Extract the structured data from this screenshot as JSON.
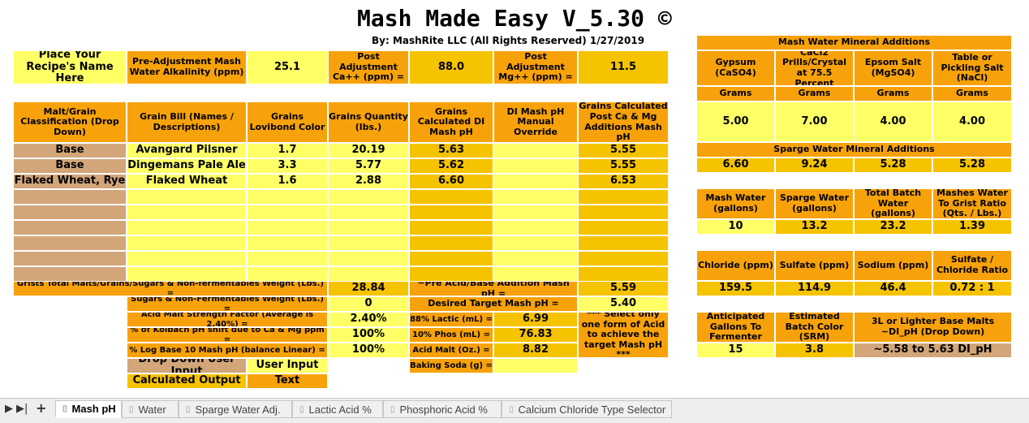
{
  "header": {
    "title": "Mash Made Easy V_5.30 ©",
    "subtitle": "By: MashRite LLC (All Rights Reserved) 1/27/2019"
  },
  "top_row": {
    "recipe_name": "Place Your Recipe's Name Here",
    "alk_label": "Pre-Adjustment Mash Water Alkalinity (ppm)",
    "alk_value": "25.1",
    "ca_label": "Post Adjustment Ca++ (ppm)  =",
    "ca_value": "88.0",
    "mg_label": "Post Adjustment Mg++ (ppm)  =",
    "mg_value": "11.5"
  },
  "grain_table": {
    "headers": [
      "Malt/Grain Classification (Drop Down)",
      "Grain Bill (Names / Descriptions)",
      "Grains Lovibond Color",
      "Grains Quantity (lbs.)",
      "Grains Calculated DI Mash pH",
      "DI Mash pH Manual Override",
      "Grains Calculated Post  Ca & Mg Additions Mash pH"
    ],
    "rows": [
      {
        "cls": "Base",
        "name": "Avangard Pilsner",
        "lov": "1.7",
        "qty": "20.19",
        "di": "5.63",
        "ovr": "",
        "post": "5.55"
      },
      {
        "cls": "Base",
        "name": "Dingemans Pale Ale",
        "lov": "3.3",
        "qty": "5.77",
        "di": "5.62",
        "ovr": "",
        "post": "5.55"
      },
      {
        "cls": "Flaked Wheat, Rye",
        "name": "Flaked Wheat",
        "lov": "1.6",
        "qty": "2.88",
        "di": "6.60",
        "ovr": "",
        "post": "6.53"
      },
      {
        "cls": "",
        "name": "",
        "lov": "",
        "qty": "",
        "di": "",
        "ovr": "",
        "post": ""
      },
      {
        "cls": "",
        "name": "",
        "lov": "",
        "qty": "",
        "di": "",
        "ovr": "",
        "post": ""
      },
      {
        "cls": "",
        "name": "",
        "lov": "",
        "qty": "",
        "di": "",
        "ovr": "",
        "post": ""
      },
      {
        "cls": "",
        "name": "",
        "lov": "",
        "qty": "",
        "di": "",
        "ovr": "",
        "post": ""
      },
      {
        "cls": "",
        "name": "",
        "lov": "",
        "qty": "",
        "di": "",
        "ovr": "",
        "post": ""
      },
      {
        "cls": "",
        "name": "",
        "lov": "",
        "qty": "",
        "di": "",
        "ovr": "",
        "post": ""
      }
    ]
  },
  "totals": {
    "total_weight_label": "Grists Total Malts/Grains/Sugars & Non-fermentables Weight (Lbs.) =",
    "total_weight": "28.84",
    "pre_acid_label": "~Pre Acid/Base Addition Mash pH =",
    "pre_acid_value": "5.59",
    "sugars_label": "Sugars & Non-Fermentables Weight (Lbs.) =",
    "sugars_value": "0",
    "target_label": "Desired Target Mash pH =",
    "target_value": "5.40",
    "acid_strength_label": "Acid Malt Strength Factor (Average is 2.40%) =",
    "acid_strength_value": "2.40%",
    "kolbach_label": "% of Kolbach pH shift due to Ca & Mg ppm =",
    "kolbach_value": "100%",
    "log_label": "% Log Base 10 Mash pH (balance Linear) =",
    "log_value": "100%",
    "lactic_label": "88%  Lactic (mL) =",
    "lactic_value": "6.99",
    "phos_label": "10%  Phos  (mL) =",
    "phos_value": "76.83",
    "acidmalt_label": "Acid Malt (Oz.) =",
    "acidmalt_value": "8.82",
    "soda_label": "Baking Soda (g) =",
    "soda_value": "",
    "note": "*** Select only one form of Acid to achieve the target Mash pH ***"
  },
  "legend": {
    "dropdown": "Drop Down User Input",
    "user_input": "User Input",
    "calculated": "Calculated Output",
    "text": "Text"
  },
  "mash_minerals": {
    "title": "Mash Water Mineral Additions",
    "headers": [
      "Gypsum (CaSO4)",
      "CaCl2 Prills/Crystal at 75.5 Percent",
      "Epsom Salt (MgSO4)",
      "Table or Pickling Salt (NaCl)"
    ],
    "units": [
      "Grams",
      "Grams",
      "Grams",
      "Grams"
    ],
    "values": [
      "5.00",
      "7.00",
      "4.00",
      "4.00"
    ]
  },
  "sparge_minerals": {
    "title": "Sparge Water Mineral Additions",
    "values": [
      "6.60",
      "9.24",
      "5.28",
      "5.28"
    ]
  },
  "volumes": {
    "headers": [
      "Mash Water (gallons)",
      "Sparge Water (gallons)",
      "Total Batch Water (gallons)",
      "Mashes Water To Grist Ratio (Qts. / Lbs.)"
    ],
    "values": [
      "10",
      "13.2",
      "23.2",
      "1.39"
    ]
  },
  "ions": {
    "headers": [
      "Chloride (ppm)",
      "Sulfate (ppm)",
      "Sodium (ppm)",
      "Sulfate / Chloride Ratio"
    ],
    "values": [
      "159.5",
      "114.9",
      "46.4",
      "0.72 : 1"
    ]
  },
  "batch": {
    "gallons_label": "Anticipated Gallons To Fermenter",
    "gallons_value": "15",
    "color_label": "Estimated Batch Color (SRM)",
    "color_value": "3.8",
    "base_label": "3L or Lighter Base Malts ~DI_pH (Drop Down)",
    "base_value": "~5.58 to 5.63 DI_pH"
  },
  "tabs": [
    "Mash pH",
    "Water",
    "Sparge Water Adj.",
    "Lactic Acid %",
    "Phosphoric Acid %",
    "Calcium Chloride Type Selector"
  ],
  "nav": {
    "prev": "▶",
    "last": "▶|",
    "add": "+"
  }
}
